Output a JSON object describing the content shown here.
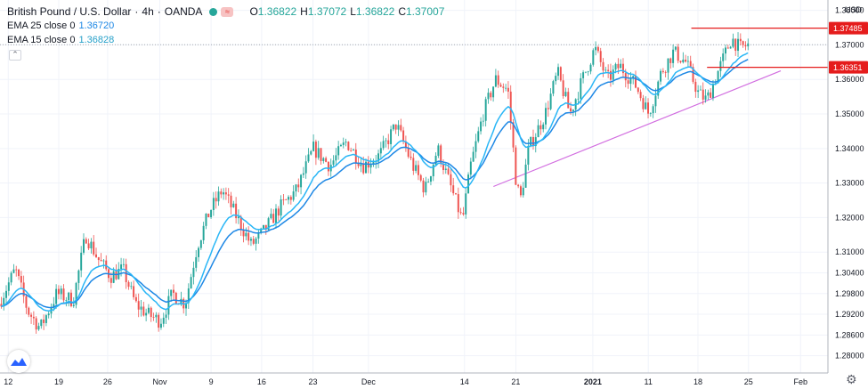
{
  "legend": {
    "symbol": "British Pound / U.S. Dollar",
    "interval": "4h",
    "exchange": "OANDA",
    "open_label": "O",
    "open": "1.36822",
    "high_label": "H",
    "high": "1.37072",
    "low_label": "L",
    "low": "1.36822",
    "close_label": "C",
    "close": "1.37007",
    "ema25_label": "EMA 25 close 0",
    "ema25_value": "1.36720",
    "ema15_label": "EMA 15 close 0",
    "ema15_value": "1.36828",
    "collapse_glyph": "⌃"
  },
  "chart_data": {
    "type": "candlestick",
    "title": "British Pound / U.S. Dollar · 4h · OANDA",
    "currency": "USD",
    "y_range": [
      1.275,
      1.383
    ],
    "x_range": [
      0,
      100
    ],
    "y_ticks": [
      "1.38000",
      "1.37000",
      "1.36000",
      "1.35000",
      "1.34000",
      "1.33000",
      "1.32000",
      "1.31000",
      "1.30400",
      "1.29800",
      "1.29200",
      "1.28600",
      "1.28000"
    ],
    "y_tick_values": [
      1.38,
      1.37,
      1.36,
      1.35,
      1.34,
      1.33,
      1.32,
      1.31,
      1.304,
      1.298,
      1.292,
      1.286,
      1.28
    ],
    "x_ticks": [
      "12",
      "19",
      "26",
      "Nov",
      "9",
      "16",
      "23",
      "Dec",
      "14",
      "21",
      "2021",
      "11",
      "18",
      "25",
      "Feb"
    ],
    "x_tick_positions": [
      1,
      7.1,
      13,
      19.3,
      25.5,
      31.6,
      37.8,
      44.5,
      56.1,
      62.3,
      71.6,
      78.3,
      84.3,
      90.4,
      96.7
    ],
    "price_path": [
      [
        0,
        1.295
      ],
      [
        2,
        1.305
      ],
      [
        3.5,
        1.293
      ],
      [
        5,
        1.288
      ],
      [
        7,
        1.298
      ],
      [
        9,
        1.296
      ],
      [
        10.5,
        1.315
      ],
      [
        12,
        1.308
      ],
      [
        13.5,
        1.303
      ],
      [
        15,
        1.305
      ],
      [
        16.5,
        1.295
      ],
      [
        18,
        1.292
      ],
      [
        19.5,
        1.29
      ],
      [
        21,
        1.298
      ],
      [
        22.5,
        1.295
      ],
      [
        24,
        1.312
      ],
      [
        25.5,
        1.322
      ],
      [
        27,
        1.328
      ],
      [
        29,
        1.319
      ],
      [
        30.5,
        1.312
      ],
      [
        32,
        1.316
      ],
      [
        34,
        1.323
      ],
      [
        36,
        1.328
      ],
      [
        38,
        1.34
      ],
      [
        40,
        1.335
      ],
      [
        42,
        1.342
      ],
      [
        44,
        1.335
      ],
      [
        46,
        1.338
      ],
      [
        48,
        1.347
      ],
      [
        50,
        1.335
      ],
      [
        51.5,
        1.328
      ],
      [
        53,
        1.34
      ],
      [
        55,
        1.326
      ],
      [
        56,
        1.319
      ],
      [
        57,
        1.335
      ],
      [
        58.5,
        1.35
      ],
      [
        60,
        1.36
      ],
      [
        61.5,
        1.357
      ],
      [
        62.5,
        1.33
      ],
      [
        63,
        1.325
      ],
      [
        64,
        1.34
      ],
      [
        66,
        1.35
      ],
      [
        67.5,
        1.362
      ],
      [
        69,
        1.35
      ],
      [
        70.5,
        1.36
      ],
      [
        72,
        1.369
      ],
      [
        73.5,
        1.36
      ],
      [
        75,
        1.364
      ],
      [
        77,
        1.358
      ],
      [
        78.5,
        1.35
      ],
      [
        80,
        1.362
      ],
      [
        81.5,
        1.368
      ],
      [
        83,
        1.365
      ],
      [
        84.5,
        1.356
      ],
      [
        85.5,
        1.354
      ],
      [
        87,
        1.363
      ],
      [
        88.5,
        1.372
      ],
      [
        89.5,
        1.369
      ],
      [
        90.5,
        1.37
      ]
    ],
    "ema_series": [
      {
        "name": "EMA 25 close 0",
        "period": 25,
        "last": 1.3672
      },
      {
        "name": "EMA 15 close 0",
        "period": 15,
        "last": 1.36828
      }
    ],
    "last_price": 1.37007,
    "support_trendline": {
      "from": [
        59.6,
        1.329
      ],
      "to": [
        94.3,
        1.3625
      ]
    },
    "horizontal_levels": [
      {
        "value": 1.37485,
        "label": "1.37485",
        "from_x": 83.5
      },
      {
        "value": 1.36351,
        "label": "1.36351",
        "from_x": 85.4
      }
    ],
    "colors": {
      "up": "#26a69a",
      "down": "#ef5350",
      "ema25": "#1e88e5",
      "ema15": "#29b6f6",
      "trendline": "#d26ee0",
      "level": "#e51c1c"
    }
  },
  "widgets": {
    "logo_icon": "tradingview-logo-icon",
    "settings_icon": "⚙"
  }
}
